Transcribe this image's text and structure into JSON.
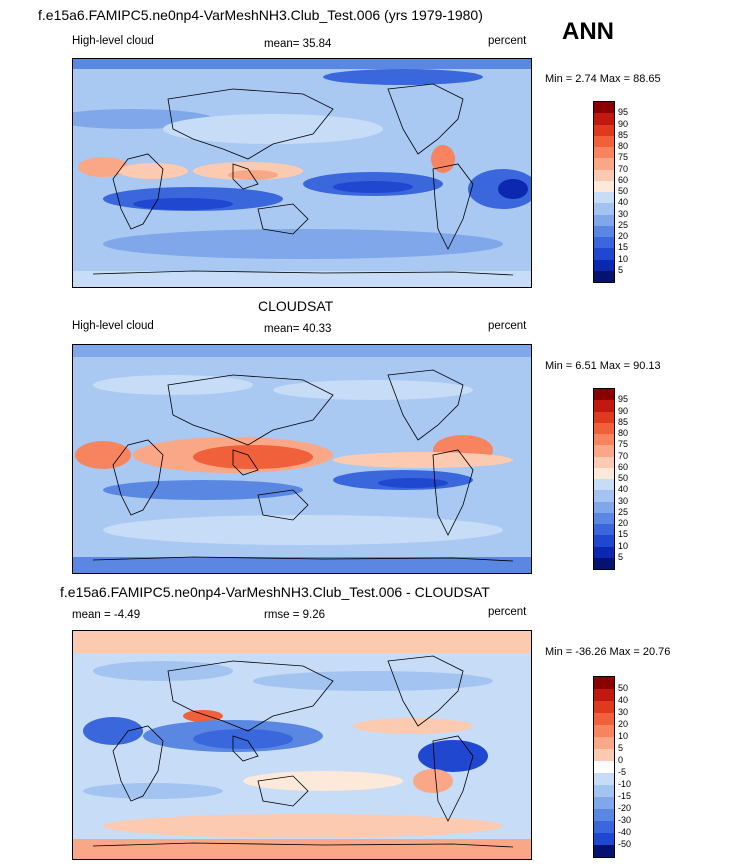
{
  "chart_data": [
    {
      "type": "heatmap",
      "title": "f.e15a6.FAMIPC5.ne0np4-VarMeshNH3.Club_Test.006 (yrs 1979-1980)",
      "season": "ANN",
      "left_label": "High-level cloud",
      "center_label": "mean=  35.84",
      "right_label": "percent",
      "min_label": "Min =",
      "min_value": "2.74",
      "max_label": "Max =",
      "max_value": "88.65",
      "colorbar_ticks": [
        "95",
        "90",
        "85",
        "80",
        "75",
        "70",
        "60",
        "50",
        "40",
        "30",
        "25",
        "20",
        "15",
        "10",
        "5"
      ],
      "colorbar_colors": [
        "#8b0000",
        "#c01a10",
        "#de3a20",
        "#f0603a",
        "#f7845e",
        "#f9a787",
        "#fbcab1",
        "#fde9d9",
        "#c7dcf7",
        "#a3c4f1",
        "#7fa7ea",
        "#5a87e2",
        "#3a67dc",
        "#1f47d0",
        "#0d28b0",
        "#03136f"
      ]
    },
    {
      "type": "heatmap",
      "title": "CLOUDSAT",
      "left_label": "High-level cloud",
      "center_label": "mean=  40.33",
      "right_label": "percent",
      "min_label": "Min =",
      "min_value": "6.51",
      "max_label": "Max =",
      "max_value": "90.13",
      "colorbar_ticks": [
        "95",
        "90",
        "85",
        "80",
        "75",
        "70",
        "60",
        "50",
        "40",
        "30",
        "25",
        "20",
        "15",
        "10",
        "5"
      ],
      "colorbar_colors": [
        "#8b0000",
        "#c01a10",
        "#de3a20",
        "#f0603a",
        "#f7845e",
        "#f9a787",
        "#fbcab1",
        "#fde9d9",
        "#c7dcf7",
        "#a3c4f1",
        "#7fa7ea",
        "#5a87e2",
        "#3a67dc",
        "#1f47d0",
        "#0d28b0",
        "#03136f"
      ]
    },
    {
      "type": "heatmap",
      "title": "f.e15a6.FAMIPC5.ne0np4-VarMeshNH3.Club_Test.006 - CLOUDSAT",
      "left_label": "mean =  -4.49",
      "center_label": "rmse =   9.26",
      "right_label": "percent",
      "min_label": "Min =",
      "min_value": "-36.26",
      "max_label": "Max =",
      "max_value": "20.76",
      "colorbar_ticks": [
        "50",
        "40",
        "30",
        "20",
        "10",
        "5",
        "0",
        "-5",
        "-10",
        "-15",
        "-20",
        "-30",
        "-40",
        "-50"
      ],
      "colorbar_colors": [
        "#8b0000",
        "#c01a10",
        "#de3a20",
        "#f0603a",
        "#f7845e",
        "#f9a787",
        "#fbcab1",
        "#ffffff",
        "#c7dcf7",
        "#a3c4f1",
        "#7fa7ea",
        "#5a87e2",
        "#3a67dc",
        "#1f47d0",
        "#03136f"
      ]
    }
  ]
}
